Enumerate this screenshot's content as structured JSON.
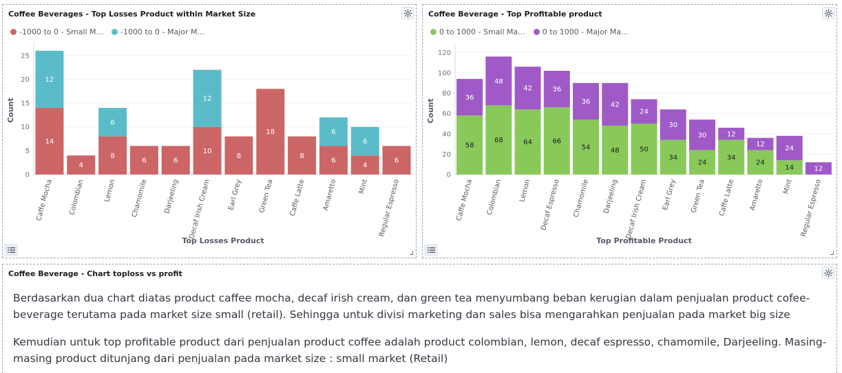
{
  "icons": {
    "gear": "gear-icon",
    "list": "list-icon",
    "resize": "resize-handle-icon"
  },
  "panels": {
    "losses": {
      "title": "Coffee Beverages - Top Losses Product within Market Size",
      "legend": [
        {
          "label": "-1000 to 0 - Small M...",
          "color": "#cc6666"
        },
        {
          "label": "-1000 to 0 - Major M...",
          "color": "#5bbcc9"
        }
      ]
    },
    "profit": {
      "title": "Coffee Beverage - Top Profitable product",
      "legend": [
        {
          "label": "0 to 1000 - Small Ma...",
          "color": "#88c95a"
        },
        {
          "label": "0 to 1000 - Major Ma...",
          "color": "#a05ac7"
        }
      ]
    },
    "text": {
      "title": "Coffee Beverage - Chart toploss vs profit",
      "paragraphs": [
        "Berdasarkan dua chart diatas product caffee mocha, decaf irish cream, dan green tea menyumbang beban kerugian dalam penjualan product cofee-beverage terutama pada market size small (retail). Sehingga untuk divisi marketing dan sales bisa mengarahkan penjualan pada market big size",
        "Kemudian untuk top profitable product dari penjualan product coffee adalah product colombian, lemon, decaf espresso, chamomile, Darjeeling. Masing-masing product ditunjang dari penjualan pada market size : small market (Retail)"
      ]
    }
  },
  "chart_data": [
    {
      "type": "bar",
      "stacked": true,
      "xlabel": "Top Losses Product",
      "ylabel": "Count",
      "ylim": [
        0,
        27
      ],
      "yticks": [
        0,
        5,
        10,
        15,
        20,
        25
      ],
      "grid": true,
      "categories": [
        "Caffe Mocha",
        "Colombian",
        "Lemon",
        "Chamomile",
        "Darjeeling",
        "Decaf Irish Cream",
        "Earl Grey",
        "Green Tea",
        "Caffe Latte",
        "Amaretto",
        "Mint",
        "Regular Espresso"
      ],
      "series": [
        {
          "name": "-1000 to 0 - Small M...",
          "color": "#cc6666",
          "values": [
            14,
            4,
            8,
            6,
            6,
            10,
            8,
            18,
            8,
            6,
            4,
            6
          ]
        },
        {
          "name": "-1000 to 0 - Major M...",
          "color": "#5bbcc9",
          "values": [
            12,
            null,
            6,
            null,
            null,
            12,
            null,
            null,
            null,
            6,
            6,
            null
          ]
        }
      ]
    },
    {
      "type": "bar",
      "stacked": true,
      "xlabel": "Top Profitable Product",
      "ylabel": "Count",
      "ylim": [
        0,
        125
      ],
      "yticks": [
        0,
        20,
        40,
        60,
        80,
        100,
        120
      ],
      "grid": true,
      "categories": [
        "Caffe Mocha",
        "Colombian",
        "Lemon",
        "Decaf Espresso",
        "Chamomile",
        "Darjeeling",
        "Decaf Irish Cream",
        "Earl Grey",
        "Green Tea",
        "Caffe Latte",
        "Amaretto",
        "Mint",
        "Regular Espresso"
      ],
      "series": [
        {
          "name": "0 to 1000 - Small Ma...",
          "color": "#88c95a",
          "values": [
            58,
            68,
            64,
            66,
            54,
            48,
            50,
            34,
            24,
            34,
            24,
            14,
            null
          ]
        },
        {
          "name": "0 to 1000 - Major Ma...",
          "color": "#a05ac7",
          "values": [
            36,
            48,
            42,
            36,
            36,
            42,
            24,
            30,
            30,
            12,
            12,
            24,
            12
          ]
        }
      ]
    }
  ]
}
